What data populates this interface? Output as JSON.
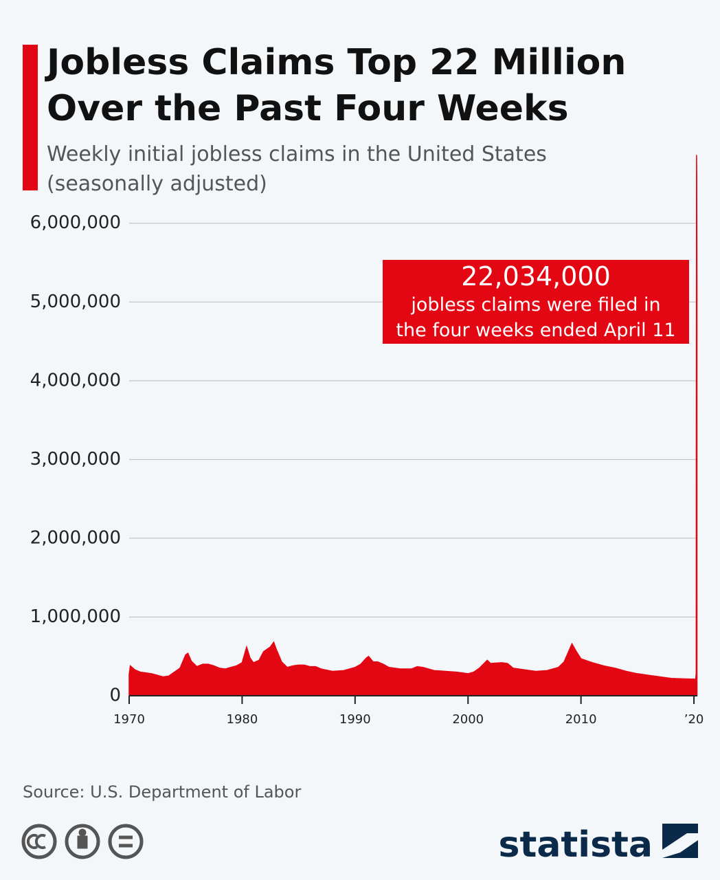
{
  "chart_data": {
    "type": "area",
    "title": [
      "Jobless Claims Top 22 Million",
      "Over the Past Four Weeks"
    ],
    "subtitle": [
      "Weekly initial jobless claims in the United States",
      "(seasonally adjusted)"
    ],
    "color": "#e30613",
    "annotation": {
      "value_label": "22,034,000",
      "text": [
        "jobless claims were filed in",
        "the four weeks ended April 11"
      ]
    },
    "source": "Source: U.S. Department of Labor",
    "logo": "statista",
    "x": [
      1970.0,
      1970.1,
      1970.5,
      1971.0,
      1971.5,
      1972.0,
      1972.5,
      1973.0,
      1973.5,
      1974.0,
      1974.5,
      1975.0,
      1975.2,
      1975.5,
      1976.0,
      1976.5,
      1977.0,
      1977.5,
      1978.0,
      1978.5,
      1979.0,
      1979.5,
      1980.0,
      1980.4,
      1980.7,
      1981.0,
      1981.5,
      1981.9,
      1982.5,
      1982.8,
      1983.0,
      1983.5,
      1984.0,
      1984.5,
      1985.0,
      1985.5,
      1986.0,
      1986.5,
      1987.0,
      1988.0,
      1989.0,
      1989.5,
      1990.0,
      1990.5,
      1991.0,
      1991.2,
      1991.6,
      1992.0,
      1992.5,
      1993.0,
      1994.0,
      1995.0,
      1995.5,
      1996.0,
      1997.0,
      1998.0,
      1999.0,
      2000.0,
      2000.5,
      2001.0,
      2001.7,
      2002.0,
      2003.0,
      2003.5,
      2004.0,
      2005.0,
      2006.0,
      2007.0,
      2008.0,
      2008.5,
      2009.2,
      2009.6,
      2010.0,
      2011.0,
      2012.0,
      2013.0,
      2014.0,
      2015.0,
      2016.0,
      2017.0,
      2018.0,
      2019.0,
      2020.15,
      2020.2,
      2020.21,
      2020.23,
      2020.25,
      2020.27
    ],
    "values": [
      270000,
      380000,
      330000,
      300000,
      290000,
      280000,
      260000,
      240000,
      250000,
      300000,
      350000,
      520000,
      540000,
      440000,
      370000,
      400000,
      400000,
      380000,
      350000,
      340000,
      360000,
      380000,
      420000,
      620000,
      480000,
      420000,
      450000,
      560000,
      620000,
      680000,
      600000,
      430000,
      360000,
      380000,
      390000,
      390000,
      370000,
      370000,
      340000,
      310000,
      320000,
      340000,
      360000,
      400000,
      480000,
      500000,
      430000,
      430000,
      400000,
      360000,
      340000,
      340000,
      370000,
      360000,
      320000,
      310000,
      300000,
      280000,
      300000,
      350000,
      450000,
      410000,
      420000,
      410000,
      350000,
      330000,
      310000,
      320000,
      360000,
      430000,
      660000,
      560000,
      470000,
      420000,
      380000,
      350000,
      310000,
      280000,
      260000,
      240000,
      220000,
      215000,
      211000,
      282000,
      3307000,
      6867000,
      6615000,
      5245000
    ],
    "xlim": [
      1970,
      2020.3
    ],
    "xticks": [
      1970,
      1980,
      1990,
      2000,
      2010,
      {
        "value": 2020,
        "label": "’20"
      }
    ],
    "ylim": [
      0,
      6600000
    ],
    "yticks": [
      0,
      {
        "value": 1000000,
        "label": "1,000,000"
      },
      {
        "value": 2000000,
        "label": "2,000,000"
      },
      {
        "value": 3000000,
        "label": "3,000,000"
      },
      {
        "value": 4000000,
        "label": "4,000,000"
      },
      {
        "value": 5000000,
        "label": "5,000,000"
      },
      {
        "value": 6000000,
        "label": "6,000,000"
      }
    ],
    "grid": true
  }
}
